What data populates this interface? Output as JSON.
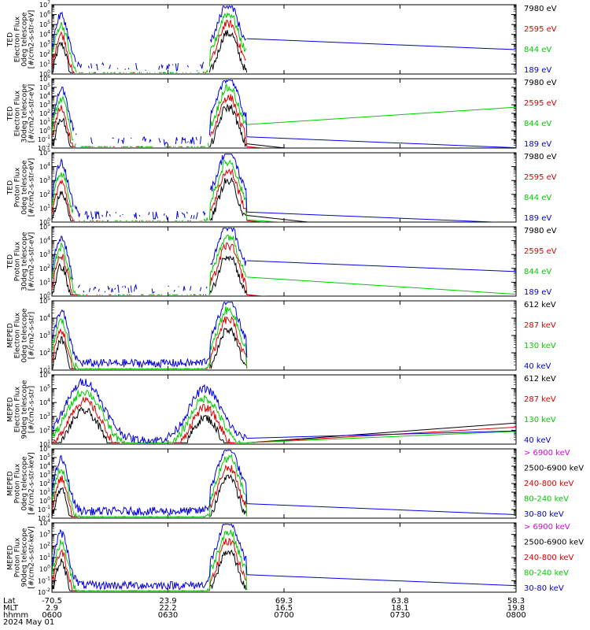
{
  "colors": {
    "black": "#000000",
    "red": "#dd0000",
    "green": "#00cc00",
    "blue": "#0000dd",
    "magenta": "#dd00dd"
  },
  "chart_data": [
    {
      "type": "line",
      "ylabel": [
        "TED",
        "Electron Flux",
        "0deg telescope",
        "[#/cm2-s-str-eV]"
      ],
      "yscale": "log",
      "ylim_exp": [
        0,
        7
      ],
      "legend": [
        {
          "label": "7980 eV",
          "color": "black"
        },
        {
          "label": "2595 eV",
          "color": "red"
        },
        {
          "label": "844 eV",
          "color": "green"
        },
        {
          "label": "189 eV",
          "color": "blue"
        }
      ]
    },
    {
      "type": "line",
      "ylabel": [
        "TED",
        "Electron Flux",
        "30deg telescope",
        "[#/cm2-s-str-eV]"
      ],
      "yscale": "log",
      "ylim_exp": [
        -2,
        6
      ],
      "legend": [
        {
          "label": "7980 eV",
          "color": "black"
        },
        {
          "label": "2595 eV",
          "color": "red"
        },
        {
          "label": "844 eV",
          "color": "green"
        },
        {
          "label": "189 eV",
          "color": "blue"
        }
      ]
    },
    {
      "type": "line",
      "ylabel": [
        "TED",
        "Proton Flux",
        "0deg telescope",
        "[#/cm2-s-str-eV]"
      ],
      "yscale": "log",
      "ylim_exp": [
        0,
        5
      ],
      "legend": [
        {
          "label": "7980 eV",
          "color": "black"
        },
        {
          "label": "2595 eV",
          "color": "red"
        },
        {
          "label": "844 eV",
          "color": "green"
        },
        {
          "label": "189 eV",
          "color": "blue"
        }
      ]
    },
    {
      "type": "line",
      "ylabel": [
        "TED",
        "Proton Flux",
        "30deg telescope",
        "[#/cm2-s-str-eV]"
      ],
      "yscale": "log",
      "ylim_exp": [
        0,
        5
      ],
      "legend": [
        {
          "label": "7980 eV",
          "color": "black"
        },
        {
          "label": "2595 eV",
          "color": "red"
        },
        {
          "label": "844 eV",
          "color": "green"
        },
        {
          "label": "189 eV",
          "color": "blue"
        }
      ]
    },
    {
      "type": "line",
      "ylabel": [
        "MEPED",
        "Electron Flux",
        "0deg telescope",
        "[#/cm2-s-str]"
      ],
      "yscale": "log",
      "ylim_exp": [
        1,
        5
      ],
      "legend": [
        {
          "label": "612 keV",
          "color": "black"
        },
        {
          "label": "287 keV",
          "color": "red"
        },
        {
          "label": "130 keV",
          "color": "green"
        },
        {
          "label": "40 keV",
          "color": "blue"
        }
      ]
    },
    {
      "type": "line",
      "ylabel": [
        "MEPED",
        "Electron Flux",
        "90deg telescope",
        "[#/cm2-s-str]"
      ],
      "yscale": "log",
      "ylim_exp": [
        1,
        6
      ],
      "legend": [
        {
          "label": "612 keV",
          "color": "black"
        },
        {
          "label": "287 keV",
          "color": "red"
        },
        {
          "label": "130 keV",
          "color": "green"
        },
        {
          "label": "40 keV",
          "color": "blue"
        }
      ]
    },
    {
      "type": "line",
      "ylabel": [
        "MEPED",
        "Proton Flux",
        "0deg telescope",
        "[#/cm2-s-str-keV]"
      ],
      "yscale": "log",
      "ylim_exp": [
        -2,
        6
      ],
      "legend": [
        {
          "label": "> 6900 keV",
          "color": "magenta"
        },
        {
          "label": "2500-6900 keV",
          "color": "black"
        },
        {
          "label": "240-800 keV",
          "color": "red"
        },
        {
          "label": "80-240 keV",
          "color": "green"
        },
        {
          "label": "30-80 keV",
          "color": "blue"
        }
      ]
    },
    {
      "type": "line",
      "ylabel": [
        "MEPED",
        "Proton Flux",
        "90deg telescope",
        "[#/cm2-s-str-keV]"
      ],
      "yscale": "log",
      "ylim_exp": [
        -2,
        4
      ],
      "legend": [
        {
          "label": "> 6900 keV",
          "color": "magenta"
        },
        {
          "label": "2500-6900 keV",
          "color": "black"
        },
        {
          "label": "240-800 keV",
          "color": "red"
        },
        {
          "label": "80-240 keV",
          "color": "green"
        },
        {
          "label": "30-80 keV",
          "color": "blue"
        }
      ]
    }
  ],
  "x_axis": {
    "row_labels": [
      "Lat",
      "MLT",
      "hhmm",
      "2024 May 01"
    ],
    "ticks": [
      {
        "lat": "-70.5",
        "mlt": "2.9",
        "hhmm": "0600"
      },
      {
        "lat": "23.9",
        "mlt": "22.2",
        "hhmm": "0630"
      },
      {
        "lat": "69.3",
        "mlt": "16.5",
        "hhmm": "0700"
      },
      {
        "lat": "63.8",
        "mlt": "18.1",
        "hhmm": "0730"
      },
      {
        "lat": "58.3",
        "mlt": "19.8",
        "hhmm": "0800"
      }
    ]
  }
}
